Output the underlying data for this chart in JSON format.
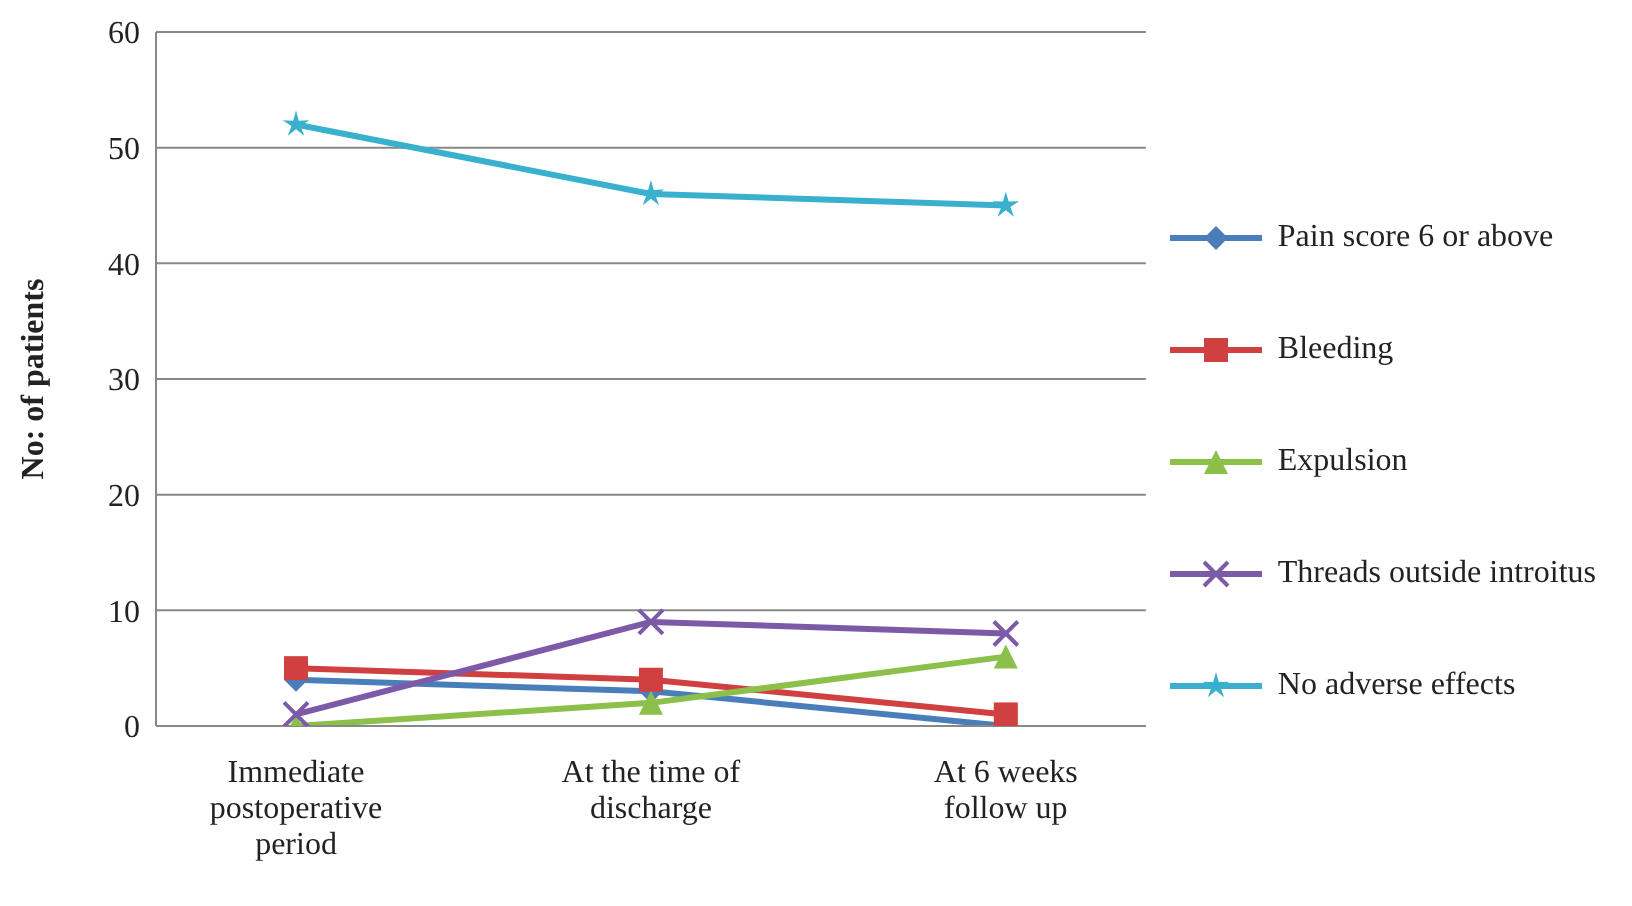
{
  "chart_data": {
    "type": "line",
    "ylabel": "No: of patients",
    "categories": [
      "Immediate postoperative period",
      "At the time of discharge",
      "At 6 weeks follow up"
    ],
    "series": [
      {
        "name": "Pain score 6 or above",
        "color": "#4a7ebb",
        "marker": "diamond",
        "values": [
          4,
          3,
          0
        ]
      },
      {
        "name": "Bleeding",
        "color": "#d04040",
        "marker": "square",
        "values": [
          5,
          4,
          1
        ]
      },
      {
        "name": "Expulsion",
        "color": "#8cc04a",
        "marker": "triangle",
        "values": [
          0,
          2,
          6
        ]
      },
      {
        "name": "Threads outside introitus",
        "color": "#7d5aa8",
        "marker": "cross",
        "values": [
          1,
          9,
          8
        ]
      },
      {
        "name": "No adverse effects",
        "color": "#3ab0cf",
        "marker": "star",
        "values": [
          52,
          46,
          45
        ]
      }
    ],
    "ylim": [
      0,
      60
    ],
    "yticks": [
      0,
      10,
      20,
      30,
      40,
      50,
      60
    ],
    "grid": "y",
    "legend": "right"
  }
}
